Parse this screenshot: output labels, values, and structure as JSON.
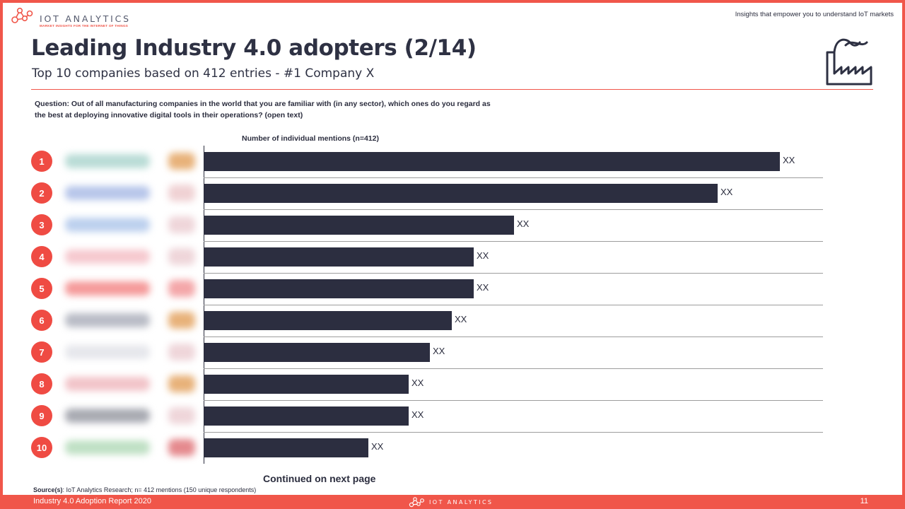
{
  "header": {
    "logo_text": "IOT ANALYTICS",
    "logo_tagline": "MARKET INSIGHTS FOR THE INTERNET OF THINGS",
    "tagline": "Insights that empower you to understand IoT markets"
  },
  "slide": {
    "title": "Leading Industry 4.0 adopters (2/14)",
    "subtitle": "Top 10 companies based on 412 entries - #1 Company X",
    "question": "Question: Out of all manufacturing companies in the world that you are familiar with (in any sector), which ones do you regard as the best at deploying innovative digital tools in their operations? (open text)",
    "continued": "Continued on next page"
  },
  "chart_data": {
    "type": "bar",
    "orientation": "horizontal",
    "title": "Number of individual mentions (n=412)",
    "categories": [
      "1",
      "2",
      "3",
      "4",
      "5",
      "6",
      "7",
      "8",
      "9",
      "10"
    ],
    "values": [
      93,
      83,
      50,
      43.5,
      43.5,
      40,
      36.5,
      33,
      33,
      26.5
    ],
    "value_labels": [
      "XX",
      "XX",
      "XX",
      "XX",
      "XX",
      "XX",
      "XX",
      "XX",
      "XX",
      "XX"
    ],
    "xlim": [
      0,
      100
    ],
    "bar_color": "#2c2e40",
    "rank_color": "#ef4b43",
    "grid": false
  },
  "source": {
    "label": "Source(s)",
    "text": ": IoT Analytics Research; n= 412 mentions (150 unique respondents)"
  },
  "footer": {
    "left": "Industry 4.0 Adoption Report 2020",
    "logo_text": "IOT ANALYTICS",
    "page": "11"
  },
  "colors": {
    "accent": "#f0564a",
    "dark": "#2e3143"
  }
}
